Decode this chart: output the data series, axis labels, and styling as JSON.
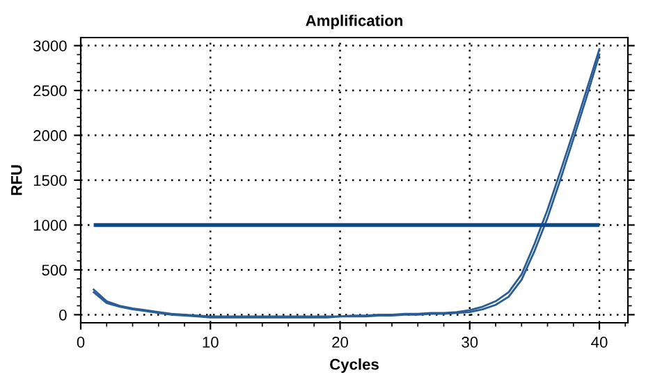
{
  "chart_data": {
    "type": "line",
    "title": "Amplification",
    "xlabel": "Cycles",
    "ylabel": "RFU",
    "x": [
      1,
      2,
      3,
      4,
      5,
      6,
      7,
      8,
      9,
      10,
      11,
      12,
      13,
      14,
      15,
      16,
      17,
      18,
      19,
      20,
      21,
      22,
      23,
      24,
      25,
      26,
      27,
      28,
      29,
      30,
      31,
      32,
      33,
      34,
      35,
      36,
      37,
      38,
      39,
      40
    ],
    "series": [
      {
        "color": "#2b5d95",
        "values": [
          280,
          150,
          100,
          70,
          50,
          30,
          10,
          0,
          -10,
          -20,
          -20,
          -20,
          -20,
          -20,
          -20,
          -20,
          -20,
          -20,
          -20,
          -20,
          -10,
          -10,
          0,
          0,
          10,
          10,
          20,
          20,
          30,
          50,
          90,
          150,
          250,
          450,
          790,
          1170,
          1600,
          2040,
          2500,
          2960
        ]
      },
      {
        "color": "#2b5d95",
        "values": [
          250,
          130,
          90,
          60,
          40,
          20,
          0,
          -10,
          -20,
          -30,
          -30,
          -30,
          -30,
          -30,
          -30,
          -30,
          -30,
          -30,
          -30,
          -20,
          -20,
          -20,
          -10,
          -10,
          0,
          0,
          10,
          10,
          20,
          30,
          60,
          110,
          200,
          390,
          710,
          1080,
          1510,
          1960,
          2420,
          2900
        ]
      }
    ],
    "ref_lines": [
      {
        "axis": "y",
        "value": 1000,
        "color": "#0b4a8b"
      }
    ],
    "xlim": [
      0,
      42.2
    ],
    "ylim": [
      -90,
      3090
    ],
    "xticks": [
      0,
      10,
      20,
      30,
      40
    ],
    "yticks": [
      0,
      500,
      1000,
      1500,
      2000,
      2500,
      3000
    ],
    "grid": true,
    "marker": "none",
    "line_style": "solid",
    "legend": false
  }
}
